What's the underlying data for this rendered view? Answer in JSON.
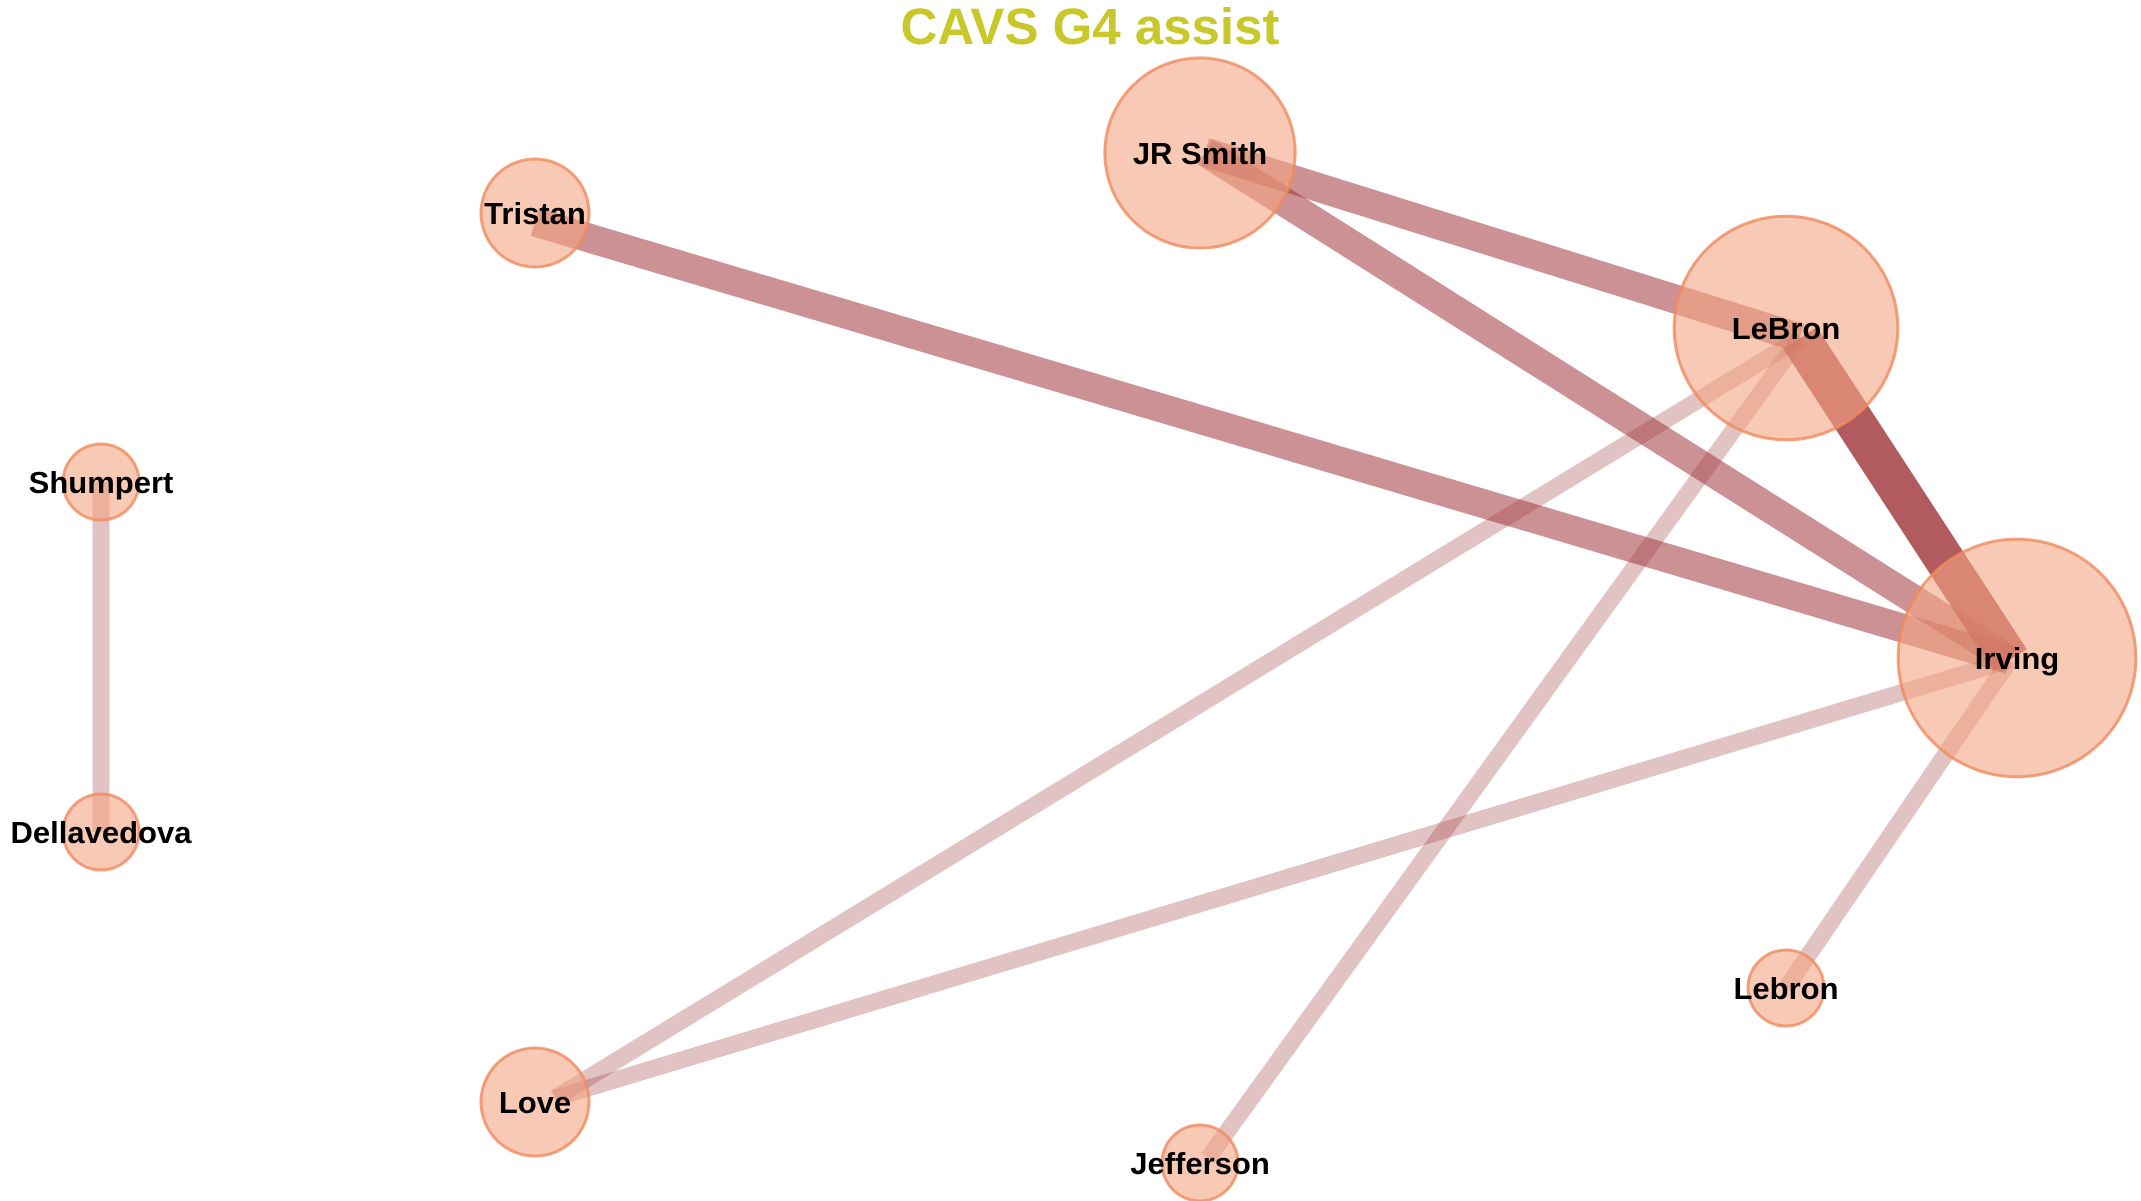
{
  "title": "CAVS G4 assist",
  "colors": {
    "title": "#c8c82a",
    "node_fill": "#f4a582",
    "node_stroke": "#f08a5d",
    "edge": "#a0373c"
  },
  "nodes": [
    {
      "id": "jr-smith",
      "label": "JR Smith",
      "weight": 3
    },
    {
      "id": "tristan",
      "label": "Tristan",
      "weight": 1
    },
    {
      "id": "lebron-cap",
      "label": "LeBron",
      "weight": 5
    },
    {
      "id": "shumpert",
      "label": "Shumpert",
      "weight": 0.5
    },
    {
      "id": "irving",
      "label": "Irving",
      "weight": 6
    },
    {
      "id": "dellavedova",
      "label": "Dellavedova",
      "weight": 0.5
    },
    {
      "id": "lebron",
      "label": "Lebron",
      "weight": 0.5
    },
    {
      "id": "love",
      "label": "Love",
      "weight": 1
    },
    {
      "id": "jefferson",
      "label": "Jefferson",
      "weight": 0.5
    }
  ],
  "edges": [
    {
      "source": "lebron-cap",
      "target": "irving",
      "weight": 4
    },
    {
      "source": "tristan",
      "target": "irving",
      "weight": 3
    },
    {
      "source": "jr-smith",
      "target": "lebron-cap",
      "weight": 3
    },
    {
      "source": "jr-smith",
      "target": "irving",
      "weight": 3
    },
    {
      "source": "love",
      "target": "lebron-cap",
      "weight": 1
    },
    {
      "source": "love",
      "target": "irving",
      "weight": 1
    },
    {
      "source": "jefferson",
      "target": "lebron-cap",
      "weight": 1
    },
    {
      "source": "lebron",
      "target": "irving",
      "weight": 1
    },
    {
      "source": "shumpert",
      "target": "dellavedova",
      "weight": 1
    }
  ]
}
